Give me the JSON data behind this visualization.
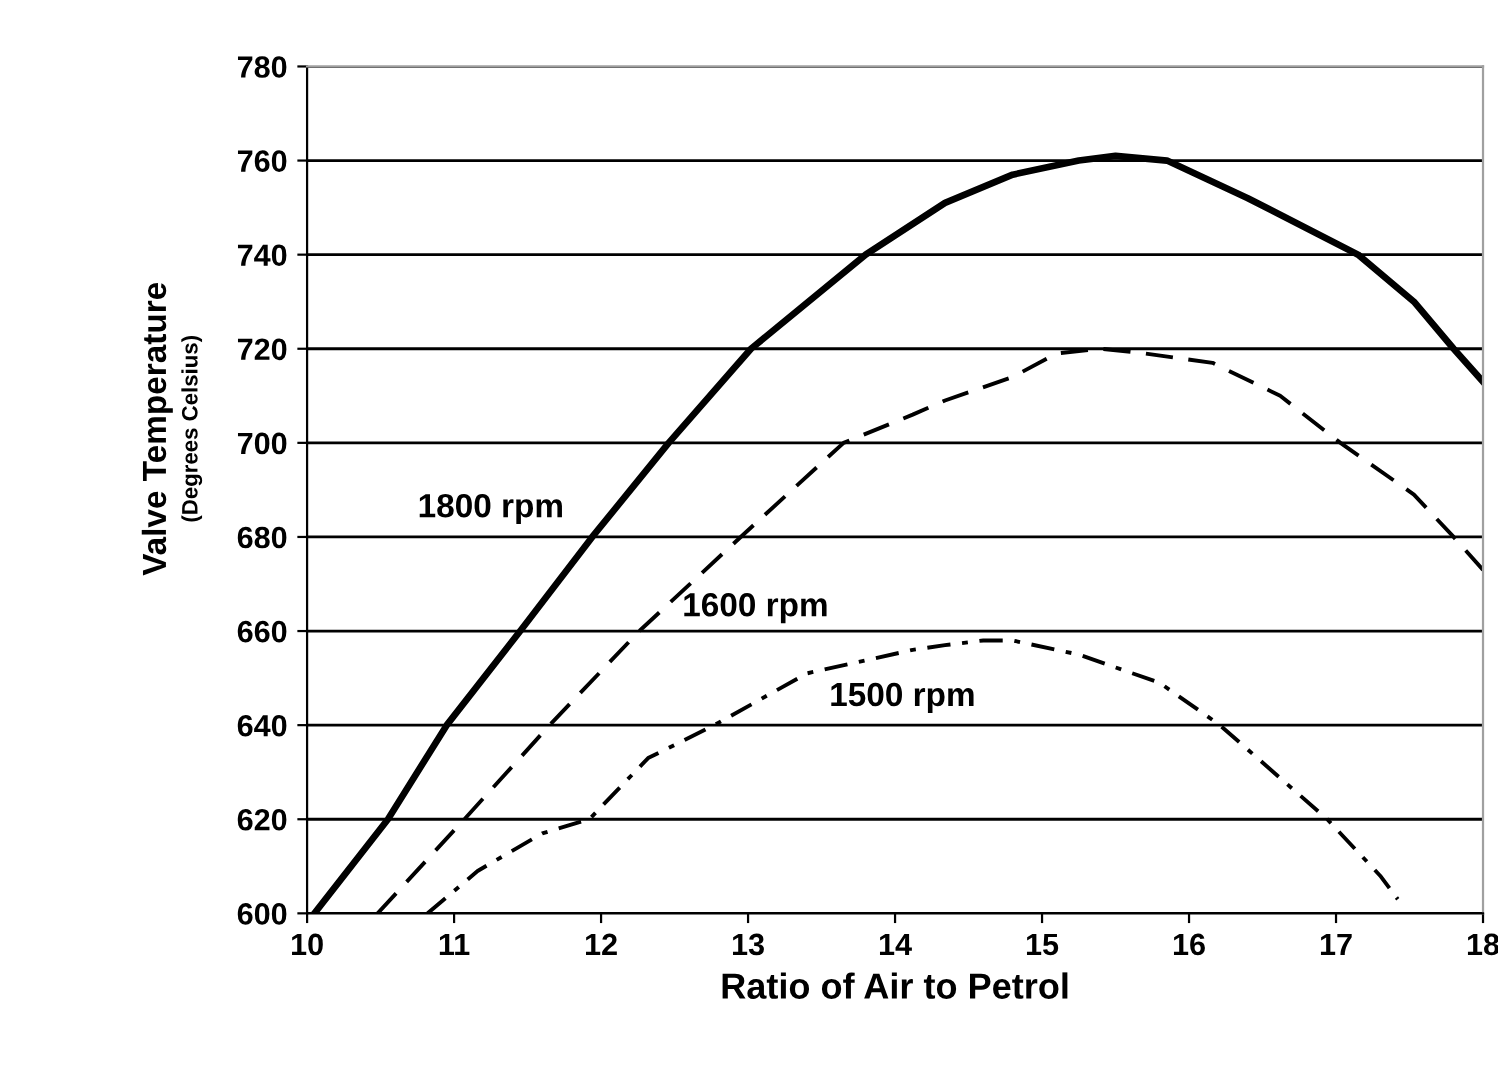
{
  "chart_data": {
    "type": "line",
    "xlabel": "Ratio of Air to Petrol",
    "ylabel": "Valve Temperature\n(Degrees Celsius)",
    "xlim": [
      10,
      18
    ],
    "xticks": [
      10,
      11,
      12,
      13,
      14,
      15,
      16,
      17,
      18
    ],
    "ylim": [
      600,
      780
    ],
    "yticks": [
      600,
      620,
      640,
      660,
      680,
      700,
      720,
      740,
      760,
      780
    ],
    "grid": "y",
    "legend": false,
    "marker": "none",
    "series": [
      {
        "color": "#000000",
        "line_style": "solid",
        "x": [
          10.05,
          10.55,
          10.95,
          11.45,
          11.94,
          12.46,
          13.02,
          13.8,
          14.34,
          14.8,
          15.25,
          15.5,
          15.85,
          16.4,
          17.15,
          17.53,
          17.8,
          18
        ],
        "values": [
          600,
          620,
          640,
          660,
          680,
          700,
          720,
          740,
          751,
          757,
          760,
          761,
          760,
          752,
          740,
          730,
          720,
          713
        ]
      },
      {
        "color": "#000000",
        "line_style": "dashed",
        "x": [
          10.48,
          11.07,
          11.65,
          12.26,
          12.95,
          13.65,
          14.12,
          14.34,
          14.8,
          15.1,
          15.4,
          15.7,
          16.16,
          16.62,
          17.03,
          17.53,
          17.8,
          18
        ],
        "values": [
          600,
          620,
          640,
          660,
          680,
          700,
          706,
          709,
          714,
          719,
          720,
          719,
          717,
          710,
          700,
          689,
          680,
          673
        ]
      },
      {
        "color": "#000000",
        "line_style": "dotted",
        "x": [
          10.82,
          11.16,
          11.6,
          11.92,
          12.32,
          12.77,
          13.4,
          14.12,
          14.34,
          14.6,
          14.8,
          15.25,
          15.8,
          16.21,
          16.94,
          17.3,
          17.42
        ],
        "values": [
          600,
          609,
          617,
          620,
          633,
          640,
          651,
          656,
          657,
          658,
          658,
          655,
          649,
          640,
          620,
          608,
          603
        ]
      }
    ],
    "annotations": [
      "1800 rpm",
      "1600 rpm",
      "1500 rpm"
    ]
  }
}
